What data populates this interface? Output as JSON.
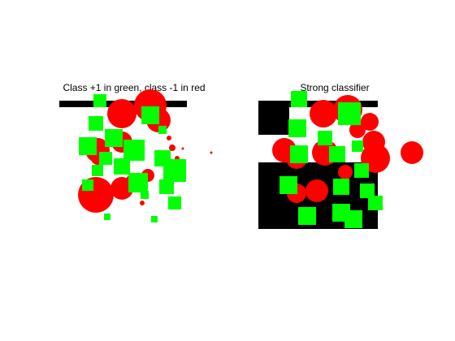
{
  "chart_data": [
    {
      "type": "scatter",
      "title": "Class +1 in green, class -1 in red",
      "xlim": [
        72,
        262
      ],
      "ylim": [
        280,
        115
      ],
      "series": [
        {
          "color": "#ff0000",
          "marker": "circle",
          "x": [
            150,
            185,
            195,
            120,
            150,
            118,
            150,
            182,
            165,
            120,
            156,
            212,
            208,
            218,
            260,
            225,
            175
          ],
          "y": [
            140,
            130,
            148,
            185,
            175,
            240,
            232,
            216,
            225,
            195,
            188,
            182,
            170,
            195,
            188,
            183,
            250
          ],
          "sizes": [
            36,
            40,
            30,
            30,
            26,
            44,
            28,
            16,
            22,
            16,
            8,
            8,
            6,
            6,
            3,
            3,
            6
          ]
        },
        {
          "color": "#00ff00",
          "marker": "square",
          "x": [
            123,
            118,
            108,
            140,
            165,
            185,
            200,
            215,
            205,
            120,
            108,
            170,
            150,
            215,
            132,
            190,
            178,
            130,
            200
          ],
          "y": [
            124,
            152,
            180,
            170,
            185,
            142,
            195,
            210,
            230,
            210,
            228,
            225,
            205,
            250,
            267,
            270,
            240,
            195,
            160
          ],
          "sizes": [
            16,
            18,
            22,
            22,
            26,
            22,
            20,
            28,
            18,
            14,
            14,
            24,
            20,
            16,
            8,
            8,
            10,
            16,
            10
          ]
        }
      ]
    },
    {
      "type": "scatter",
      "title": "Strong classifier",
      "xlim": [
        318,
        520
      ],
      "ylim": [
        282,
        115
      ],
      "series": [
        {
          "color": "#ff0000",
          "marker": "circle",
          "x": [
            398,
            428,
            455,
            350,
            365,
            400,
            390,
            365,
            460,
            462,
            507,
            425,
            440
          ],
          "y": [
            140,
            135,
            150,
            185,
            195,
            188,
            235,
            238,
            175,
            195,
            188,
            212,
            160
          ],
          "sizes": [
            34,
            36,
            22,
            30,
            26,
            32,
            28,
            24,
            28,
            36,
            28,
            18,
            20
          ]
        },
        {
          "color": "#00ff00",
          "marker": "square",
          "x": [
            368,
            366,
            368,
            355,
            378,
            420,
            435,
            430,
            415,
            445,
            452,
            462,
            400,
            440,
            420
          ],
          "y": [
            122,
            158,
            190,
            228,
            266,
            262,
            270,
            140,
            190,
            210,
            235,
            250,
            170,
            180,
            230
          ],
          "sizes": [
            20,
            22,
            22,
            22,
            22,
            22,
            22,
            28,
            20,
            18,
            18,
            18,
            18,
            14,
            20
          ]
        }
      ]
    }
  ]
}
